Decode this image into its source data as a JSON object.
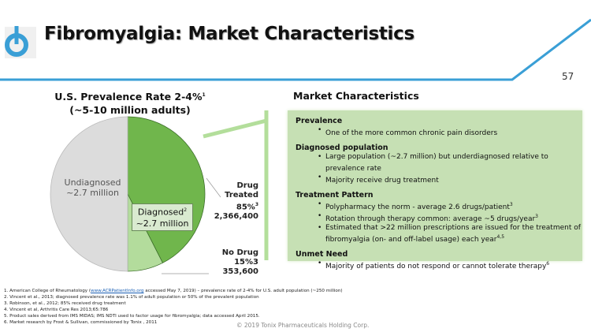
{
  "header": {
    "title": "Fibromyalgia: Market Characteristics",
    "page_number": "57",
    "logo": "power-button-logo",
    "accent_color": "#3a9fd6"
  },
  "chart_data": {
    "type": "pie",
    "title": "U.S. Prevalence Rate 2-4%",
    "title_sup": "1",
    "subtitle": "(~5-10 million adults)",
    "slices": [
      {
        "label": "Undiagnosed",
        "value_text": "~2.7 million",
        "share": 50,
        "color": "#dcdcdc"
      },
      {
        "label": "Drug Treated",
        "percent": "85%",
        "percent_sup": "3",
        "value": 2366400,
        "value_text": "2,366,400",
        "share": 42.5,
        "color": "#70b64c"
      },
      {
        "label": "No Drug",
        "percent": "15%3",
        "value": 353600,
        "value_text": "353,600",
        "share": 7.5,
        "color": "#b3dc9c"
      }
    ],
    "group_label": {
      "label": "Diagnosed",
      "sup": "2",
      "value_text": "~2.7 million"
    }
  },
  "market": {
    "title": "Market Characteristics",
    "sections": [
      {
        "heading": "Prevalence",
        "bullets": [
          {
            "text": "One of the more common chronic pain disorders",
            "sup": ""
          }
        ]
      },
      {
        "heading": "Diagnosed population",
        "bullets": [
          {
            "text": "Large population (~2.7 million) but underdiagnosed relative to prevalence rate",
            "sup": ""
          },
          {
            "text": "Majority receive drug treatment",
            "sup": ""
          }
        ]
      },
      {
        "heading": "Treatment Pattern",
        "bullets": [
          {
            "text": "Polypharmacy the norm - average 2.6 drugs/patient",
            "sup": "3"
          },
          {
            "text": "Rotation through therapy common: average ~5 drugs/year",
            "sup": "3"
          },
          {
            "text": "Estimated that >22 million prescriptions are issued for the treatment of fibromyalgia (on- and off-label usage) each year",
            "sup": "4,5"
          }
        ]
      },
      {
        "heading": "Unmet Need",
        "bullets": [
          {
            "text": "Majority of patients do not respond or cannot tolerate therapy",
            "sup": "6"
          }
        ]
      }
    ]
  },
  "footnotes": {
    "f1_pre": "1. American College of Rheumatology (",
    "f1_link": "www.ACRPatientInfo.org",
    "f1_post": " accessed May 7, 2019) – prevalence rate of 2-4% for U.S. adult population (~250 million)",
    "others": [
      "2. Vincent et al., 2013; diagnosed prevalence rate was 1.1% of adult population or 50% of the prevalent population",
      "3. Robinson, et al., 2012; 85% received drug treatment",
      "4. Vincent et al, Arthritis Care Res 2013;65:786",
      "5. Product sales derived from IMS MIDAS; IMS NDTI used to factor usage for fibromyalgia; data accessed April 2015.",
      "6. Market research by Frost & Sullivan, commissioned by Tonix , 2011"
    ]
  },
  "copyright": "© 2019 Tonix Pharmaceuticals Holding Corp."
}
